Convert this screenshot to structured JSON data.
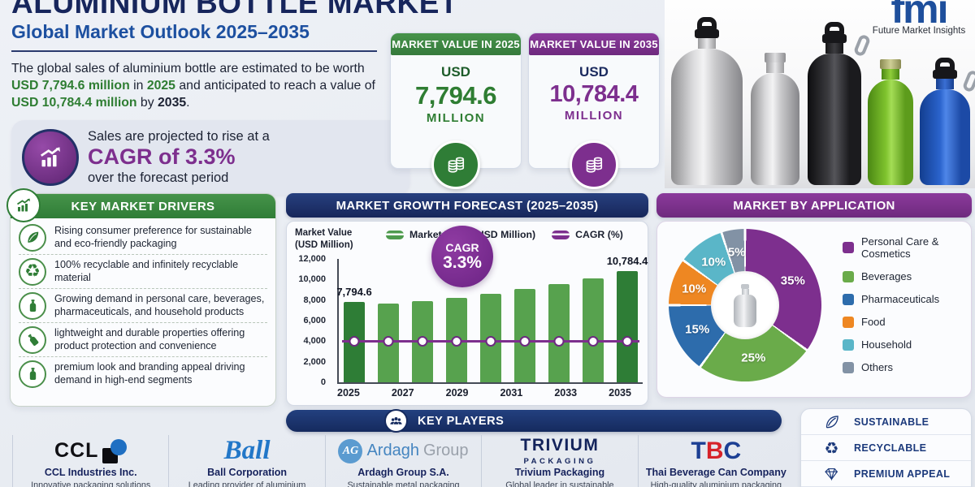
{
  "header": {
    "title": "ALUMINIUM BOTTLE MARKET",
    "subtitle": "Global Market Outlook 2025–2035",
    "description": [
      {
        "text": "The global sales of aluminium bottle are estimated to be worth ",
        "style": "normal"
      },
      {
        "text": "USD 7,794.6 million",
        "style": "green-bold"
      },
      {
        "text": " in ",
        "style": "normal"
      },
      {
        "text": "2025",
        "style": "green-bold"
      },
      {
        "text": " and anticipated to reach a value of ",
        "style": "normal"
      },
      {
        "text": "USD 10,784.4 million",
        "style": "green-bold"
      },
      {
        "text": " by ",
        "style": "normal"
      },
      {
        "text": "2035",
        "style": "dark-bold"
      },
      {
        "text": ".",
        "style": "normal"
      }
    ],
    "cagr_callout": {
      "line1": "Sales are projected to rise at a",
      "line2": "CAGR of 3.3%",
      "line3": "over the forecast period"
    }
  },
  "brand": {
    "logo_text": "fmi",
    "tagline": "Future Market Insights"
  },
  "value_cards": [
    {
      "header": "MARKET VALUE IN 2025",
      "currency": "USD",
      "value": "7,794.6",
      "unit": "MILLION",
      "theme": "green",
      "accent": "#2e7d32"
    },
    {
      "header": "MARKET VALUE IN 2035",
      "currency": "USD",
      "value": "10,784.4",
      "unit": "MILLION",
      "theme": "purple",
      "accent": "#7d2f8e"
    }
  ],
  "photo": {
    "bottles": [
      "silver",
      "silver",
      "black",
      "green",
      "blue"
    ]
  },
  "drivers": {
    "title": "KEY MARKET DRIVERS",
    "items": [
      {
        "icon": "leaf-icon",
        "text": "Rising consumer preference for sustainable and eco-friendly packaging"
      },
      {
        "icon": "recycle-icon",
        "text": "100% recyclable and infinitely recyclable material"
      },
      {
        "icon": "bottle-icon",
        "text": "Growing demand in personal care, beverages, pharmaceuticals, and household products"
      },
      {
        "icon": "tilted-bottle-icon",
        "text": "lightweight and durable properties offering product protection and convenience"
      },
      {
        "icon": "bottle-icon",
        "text": "premium look and branding appeal driving demand in high-end segments"
      }
    ]
  },
  "chart_data": [
    {
      "type": "bar",
      "title": "MARKET GROWTH FORECAST (2025–2035)",
      "ylabel": "Market Value (USD Million)",
      "ylabel_lines": [
        "Market Value",
        "(USD Million)"
      ],
      "x_range": "2025–2035",
      "x_tick_labels": [
        "2025",
        "2027",
        "2029",
        "2031",
        "2033",
        "2035"
      ],
      "values": [
        7794.6,
        7620,
        7900,
        8230,
        8600,
        9070,
        9580,
        10140,
        10784.4
      ],
      "value_labels": [
        "7,794.6",
        null,
        null,
        null,
        null,
        null,
        null,
        null,
        "10,784.4"
      ],
      "ylim": [
        0,
        12000
      ],
      "yticks": [
        "12,000",
        "10,000",
        "8,000",
        "6,000",
        "4,000",
        "2,000",
        "0"
      ],
      "bar_color": "#57a24e",
      "bar_color_emphasis": "#2e7d36",
      "legend": [
        {
          "label": "Market Value (USD Million)",
          "color": "#4e9b4e"
        },
        {
          "label": "CAGR (%)",
          "color": "#7d2f8e"
        }
      ],
      "cagr_badge": {
        "label": "CAGR",
        "value": "3.3%"
      },
      "cagr_line_level": 4000,
      "cagr_line_color": "#7d2f8e"
    },
    {
      "type": "pie",
      "title": "MARKET BY APPLICATION",
      "legend_position": "right",
      "segments": [
        {
          "label": "Personal Care & Cosmetics",
          "value": 35,
          "color": "#7d2f8e"
        },
        {
          "label": "Beverages",
          "value": 25,
          "color": "#6aab4a"
        },
        {
          "label": "Pharmaceuticals",
          "value": 15,
          "color": "#2d6cac"
        },
        {
          "label": "Food",
          "value": 10,
          "color": "#ee8722"
        },
        {
          "label": "Household",
          "value": 10,
          "color": "#5ab6c8"
        },
        {
          "label": "Others",
          "value": 5,
          "color": "#8292a5"
        }
      ]
    }
  ],
  "key_players": {
    "title": "KEY PLAYERS",
    "companies": [
      {
        "style": "ccl",
        "logo_text": "CCL",
        "name": "CCL Industries Inc.",
        "tagline": "Innovative packaging solutions"
      },
      {
        "style": "ball",
        "logo_text": "Ball",
        "name": "Ball Corporation",
        "tagline": "Leading provider of aluminium"
      },
      {
        "style": "ardagh",
        "logo_monogram": "AG",
        "logo_text": "Ardagh",
        "logo_text2": "Group",
        "name": "Ardagh Group S.A.",
        "tagline": "Sustainable metal packaging"
      },
      {
        "style": "trivium",
        "logo_text": "TRIVIUM",
        "logo_sub": "PACKAGING",
        "name": "Trivium Packaging",
        "tagline": "Global leader in sustainable"
      },
      {
        "style": "tbc",
        "logo_text": "TBC",
        "logo_letter_colors": [
          "#1c3f94",
          "#d6232a",
          "#1c3f94"
        ],
        "name": "Thai Beverage Can Company",
        "tagline": "High-quality aluminium packaging"
      }
    ]
  },
  "badges": {
    "items": [
      {
        "icon": "leaf-icon",
        "label": "SUSTAINABLE"
      },
      {
        "icon": "recycle-icon",
        "label": "RECYCLABLE"
      },
      {
        "icon": "diamond-icon",
        "label": "PREMIUM APPEAL"
      }
    ]
  }
}
